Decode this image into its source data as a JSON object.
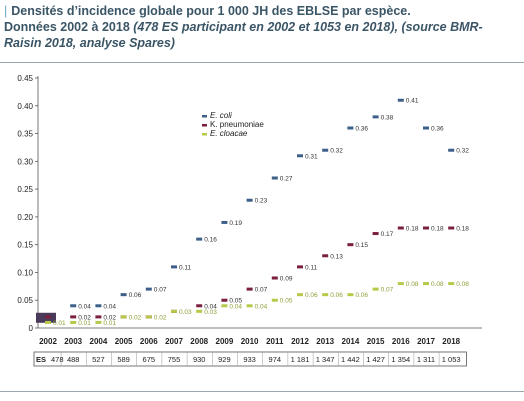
{
  "header": {
    "title": "Densités d’incidence globale pour 1 000 JH des EBLSE par espèce.",
    "subtitle_main": "Données 2002 à 2018 ",
    "subtitle_note": "(478 ES participant en 2002 et 1053 en 2018), (source BMR-Raisin 2018, analyse Spares)"
  },
  "chart_data": {
    "type": "scatter",
    "title": "",
    "xlabel": "",
    "ylabel": "",
    "ylim": [
      0,
      0.45
    ],
    "yticks": [
      "0",
      "0.05",
      "0.10",
      "0.15",
      "0.20",
      "0.25",
      "0.30",
      "0.35",
      "0.40",
      "0.45"
    ],
    "grid": false,
    "legend_position": "top-center",
    "categories": [
      "2002",
      "2003",
      "2004",
      "2005",
      "2006",
      "2007",
      "2008",
      "2009",
      "2010",
      "2011",
      "2012",
      "2013",
      "2014",
      "2015",
      "2016",
      "2017",
      "2018"
    ],
    "series": [
      {
        "name": "E. coli",
        "color": "#3d5f8a",
        "values": [
          0.02,
          0.04,
          0.04,
          0.06,
          0.07,
          0.11,
          0.16,
          0.19,
          0.23,
          0.27,
          0.31,
          0.32,
          0.36,
          0.38,
          0.41,
          0.36,
          0.32
        ],
        "labels": [
          "",
          "0.04",
          "0.04",
          "0.06",
          "0.07",
          "0.11",
          "0.16",
          "0.19",
          "0.23",
          "0.27",
          "0.31",
          "0.32",
          "0.36",
          "0.38",
          "0.41",
          "0.36",
          "0.32"
        ]
      },
      {
        "name": "K. pneumoniae",
        "color": "#7a1f3d",
        "values": [
          0.02,
          0.02,
          0.02,
          0.02,
          0.02,
          0.03,
          0.04,
          0.05,
          0.07,
          0.09,
          0.11,
          0.13,
          0.15,
          0.17,
          0.18,
          0.18,
          0.18
        ],
        "labels": [
          "",
          "0.02",
          "0.02",
          "",
          "",
          "",
          "0.04",
          "0.05",
          "0.07",
          "0.09",
          "0.11",
          "0.13",
          "0.15",
          "0.17",
          "0.18",
          "0.18",
          "0.18"
        ]
      },
      {
        "name": "E. cloacae",
        "color": "#b8c94a",
        "values": [
          0.01,
          0.01,
          0.01,
          0.02,
          0.02,
          0.03,
          0.03,
          0.04,
          0.04,
          0.05,
          0.06,
          0.06,
          0.06,
          0.07,
          0.08,
          0.08,
          0.08
        ],
        "labels": [
          "0.01",
          "0.01",
          "0.01",
          "0.02",
          "0.02",
          "0.03",
          "0.03",
          "0.04",
          "0.04",
          "0.05",
          "0.06",
          "0.06",
          "0.06",
          "0.07",
          "0.08",
          "0.08",
          "0.08"
        ]
      }
    ],
    "es_row": {
      "label": "ES",
      "values": [
        "478",
        "488",
        "527",
        "589",
        "675",
        "755",
        "930",
        "929",
        "933",
        "974",
        "1 181",
        "1 347",
        "1 442",
        "1 427",
        "1 354",
        "1 311",
        "1 053"
      ]
    }
  }
}
